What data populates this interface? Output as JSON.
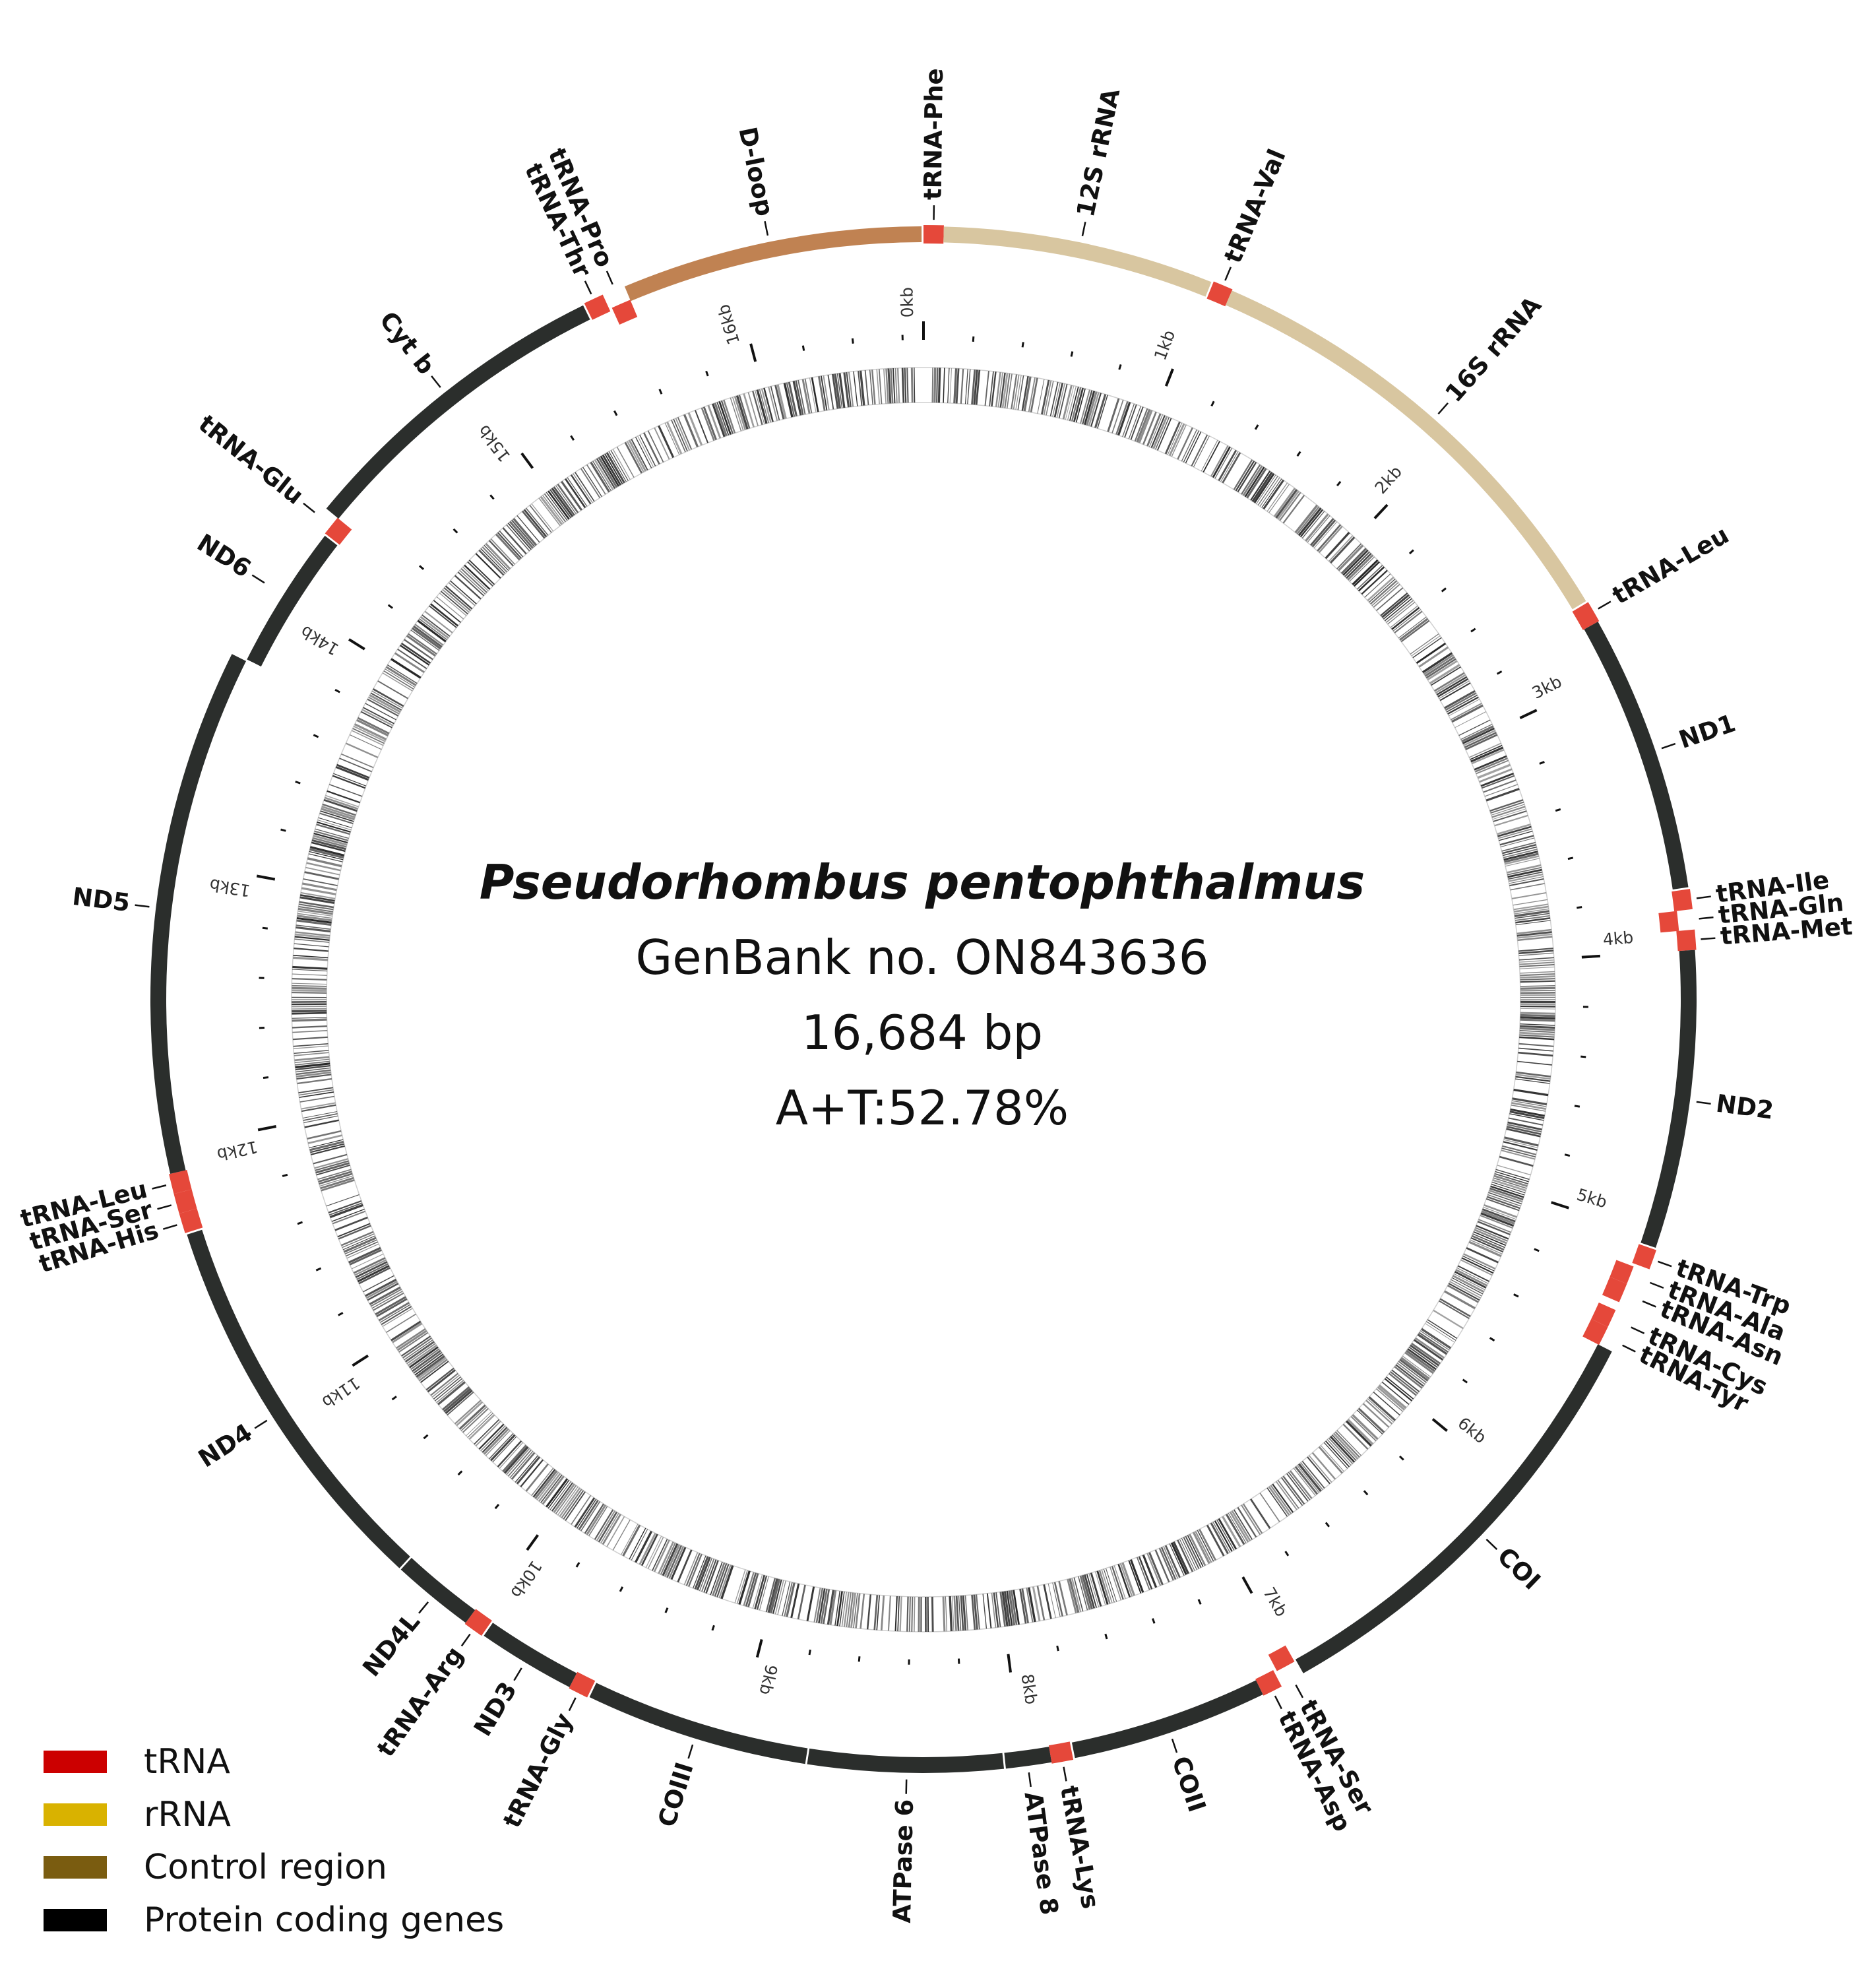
{
  "center": {
    "species": "Pseudorhombus pentophthalmus",
    "genbank": "GenBank no. ON843636",
    "length": "16,684 bp",
    "at_content": "A+T:52.78%"
  },
  "genome_length_bp": 16684,
  "colors": {
    "trna": "#e5483a",
    "rrna": "#d8c6a0",
    "control": "#c08252",
    "pcg": "#2b2e2c",
    "legend_trna": "#cc0000",
    "legend_rrna": "#d9b200",
    "legend_control": "#7a5c10",
    "legend_pcg": "#000000"
  },
  "legend": [
    {
      "label": "tRNA",
      "color_key": "legend_trna"
    },
    {
      "label": "rRNA",
      "color_key": "legend_rrna"
    },
    {
      "label": "Control region",
      "color_key": "legend_control"
    },
    {
      "label": "Protein coding genes",
      "color_key": "legend_pcg"
    }
  ],
  "kb_labels": [
    "0kb",
    "1kb",
    "2kb",
    "3kb",
    "4kb",
    "5kb",
    "6kb",
    "7kb",
    "8kb",
    "9kb",
    "10kb",
    "11kb",
    "12kb",
    "13kb",
    "14kb",
    "15kb",
    "16kb"
  ],
  "genes": [
    {
      "name": "tRNA-Phe",
      "type": "trna",
      "start": 0,
      "end": 70,
      "track": "outer"
    },
    {
      "name": "12S rRNA",
      "type": "rrna",
      "start": 70,
      "end": 1020,
      "track": "outer"
    },
    {
      "name": "tRNA-Val",
      "type": "trna",
      "start": 1020,
      "end": 1090,
      "track": "outer"
    },
    {
      "name": "16S rRNA",
      "type": "rrna",
      "start": 1090,
      "end": 2740,
      "track": "outer"
    },
    {
      "name": "tRNA-Leu",
      "type": "trna",
      "start": 2740,
      "end": 2815,
      "track": "outer"
    },
    {
      "name": "ND1",
      "type": "pcg",
      "start": 2815,
      "end": 3790,
      "track": "outer"
    },
    {
      "name": "tRNA-Ile",
      "type": "trna",
      "start": 3790,
      "end": 3860,
      "track": "outer"
    },
    {
      "name": "tRNA-Gln",
      "type": "trna",
      "start": 3860,
      "end": 3930,
      "track": "inner"
    },
    {
      "name": "tRNA-Met",
      "type": "trna",
      "start": 3930,
      "end": 4000,
      "track": "outer"
    },
    {
      "name": "ND2",
      "type": "pcg",
      "start": 4000,
      "end": 5045,
      "track": "outer"
    },
    {
      "name": "tRNA-Trp",
      "type": "trna",
      "start": 5045,
      "end": 5115,
      "track": "outer"
    },
    {
      "name": "tRNA-Ala",
      "type": "trna",
      "start": 5125,
      "end": 5190,
      "track": "inner"
    },
    {
      "name": "tRNA-Asn",
      "type": "trna",
      "start": 5190,
      "end": 5260,
      "track": "inner"
    },
    {
      "name": "tRNA-Cys",
      "type": "trna",
      "start": 5290,
      "end": 5355,
      "track": "inner"
    },
    {
      "name": "tRNA-Tyr",
      "type": "trna",
      "start": 5355,
      "end": 5425,
      "track": "inner"
    },
    {
      "name": "COI",
      "type": "pcg",
      "start": 5425,
      "end": 6985,
      "track": "outer"
    },
    {
      "name": "tRNA-Ser",
      "type": "trna",
      "start": 6985,
      "end": 7055,
      "track": "inner"
    },
    {
      "name": "tRNA-Asp",
      "type": "trna",
      "start": 7065,
      "end": 7135,
      "track": "outer"
    },
    {
      "name": "COII",
      "type": "pcg",
      "start": 7135,
      "end": 7825,
      "track": "outer"
    },
    {
      "name": "tRNA-Lys",
      "type": "trna",
      "start": 7825,
      "end": 7900,
      "track": "outer"
    },
    {
      "name": "ATPase 8",
      "type": "pcg",
      "start": 7900,
      "end": 8065,
      "track": "outer"
    },
    {
      "name": "ATPase 6",
      "type": "pcg",
      "start": 8065,
      "end": 8750,
      "track": "outer"
    },
    {
      "name": "COIII",
      "type": "pcg",
      "start": 8750,
      "end": 9535,
      "track": "outer"
    },
    {
      "name": "tRNA-Gly",
      "type": "trna",
      "start": 9535,
      "end": 9605,
      "track": "outer"
    },
    {
      "name": "ND3",
      "type": "pcg",
      "start": 9605,
      "end": 9955,
      "track": "outer"
    },
    {
      "name": "tRNA-Arg",
      "type": "trna",
      "start": 9955,
      "end": 10025,
      "track": "outer"
    },
    {
      "name": "ND4L",
      "type": "pcg",
      "start": 10025,
      "end": 10320,
      "track": "outer"
    },
    {
      "name": "ND4",
      "type": "pcg",
      "start": 10320,
      "end": 11700,
      "track": "outer"
    },
    {
      "name": "tRNA-His",
      "type": "trna",
      "start": 11700,
      "end": 11770,
      "track": "outer"
    },
    {
      "name": "tRNA-Ser",
      "type": "trna",
      "start": 11770,
      "end": 11840,
      "track": "outer"
    },
    {
      "name": "tRNA-Leu",
      "type": "trna",
      "start": 11840,
      "end": 11910,
      "track": "outer"
    },
    {
      "name": "ND5",
      "type": "pcg",
      "start": 11910,
      "end": 13750,
      "track": "outer"
    },
    {
      "name": "ND6",
      "type": "pcg",
      "start": 13750,
      "end": 14270,
      "track": "inner"
    },
    {
      "name": "tRNA-Glu",
      "type": "trna",
      "start": 14270,
      "end": 14340,
      "track": "inner"
    },
    {
      "name": "Cyt b",
      "type": "pcg",
      "start": 14340,
      "end": 15480,
      "track": "outer"
    },
    {
      "name": "tRNA-Thr",
      "type": "trna",
      "start": 15480,
      "end": 15550,
      "track": "outer"
    },
    {
      "name": "tRNA-Pro",
      "type": "trna",
      "start": 15560,
      "end": 15630,
      "track": "inner"
    },
    {
      "name": "D-loop",
      "type": "control",
      "start": 15630,
      "end": 16684,
      "track": "outer"
    }
  ],
  "labels": [
    {
      "text": "tRNA-Phe",
      "pos": 35
    },
    {
      "text": "12S rRNA",
      "pos": 545
    },
    {
      "text": "tRNA-Val",
      "pos": 1055
    },
    {
      "text": "16S rRNA",
      "pos": 1915
    },
    {
      "text": "tRNA-Leu",
      "pos": 2777
    },
    {
      "text": "ND1",
      "pos": 3300
    },
    {
      "text": "tRNA-Ile",
      "pos": 3825
    },
    {
      "text": "tRNA-Gln",
      "pos": 3895
    },
    {
      "text": "tRNA-Met",
      "pos": 3965
    },
    {
      "text": "ND2",
      "pos": 4520
    },
    {
      "text": "tRNA-Trp",
      "pos": 5080
    },
    {
      "text": "tRNA-Ala",
      "pos": 5157
    },
    {
      "text": "tRNA-Asn",
      "pos": 5225
    },
    {
      "text": "tRNA-Cys",
      "pos": 5322
    },
    {
      "text": "tRNA-Tyr",
      "pos": 5390
    },
    {
      "text": "COI",
      "pos": 6200
    },
    {
      "text": "tRNA-Ser",
      "pos": 7020
    },
    {
      "text": "tRNA-Asp",
      "pos": 7100
    },
    {
      "text": "COII",
      "pos": 7480
    },
    {
      "text": "tRNA-Lys",
      "pos": 7862
    },
    {
      "text": "ATPase 8",
      "pos": 7982
    },
    {
      "text": "ATPase 6",
      "pos": 8400
    },
    {
      "text": "COIII",
      "pos": 9140
    },
    {
      "text": "tRNA-Gly",
      "pos": 9570
    },
    {
      "text": "ND3",
      "pos": 9780
    },
    {
      "text": "tRNA-Arg",
      "pos": 9990
    },
    {
      "text": "ND4L",
      "pos": 10170
    },
    {
      "text": "ND4",
      "pos": 11000
    },
    {
      "text": "tRNA-His",
      "pos": 11735
    },
    {
      "text": "tRNA-Ser",
      "pos": 11805
    },
    {
      "text": "tRNA-Leu",
      "pos": 11875
    },
    {
      "text": "ND5",
      "pos": 12830
    },
    {
      "text": "ND6",
      "pos": 14010
    },
    {
      "text": "tRNA-Glu",
      "pos": 14305
    },
    {
      "text": "Cyt b",
      "pos": 14910
    },
    {
      "text": "tRNA-Thr",
      "pos": 15515
    },
    {
      "text": "tRNA-Pro",
      "pos": 15595
    },
    {
      "text": "D-loop",
      "pos": 16150
    }
  ]
}
